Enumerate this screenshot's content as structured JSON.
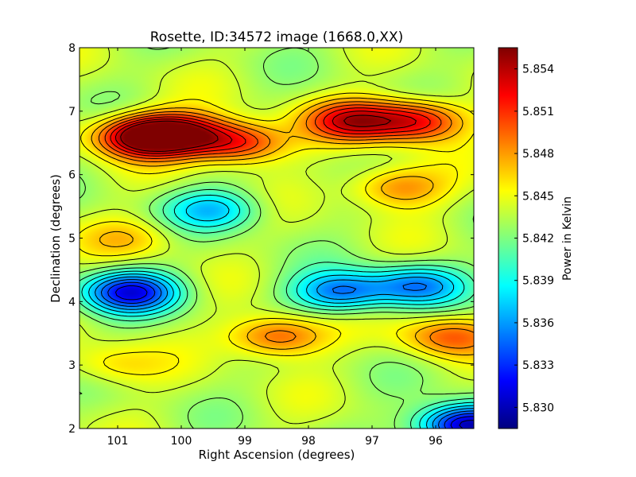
{
  "chart_data": {
    "type": "heatmap",
    "title": "Rosette, ID:34572 image (1668.0,XX)",
    "xlabel": "Right Ascension (degrees)",
    "ylabel": "Declination (degrees)",
    "colorbar_label": "Power in Kelvin",
    "x_reversed": true,
    "xlim": [
      101.6,
      95.4
    ],
    "ylim": [
      2,
      8
    ],
    "x_ticks": [
      {
        "value": 101,
        "label": "101"
      },
      {
        "value": 100,
        "label": "100"
      },
      {
        "value": 99,
        "label": "99"
      },
      {
        "value": 98,
        "label": "98"
      },
      {
        "value": 97,
        "label": "97"
      },
      {
        "value": 96,
        "label": "96"
      }
    ],
    "y_ticks": [
      {
        "value": 2,
        "label": "2"
      },
      {
        "value": 3,
        "label": "3"
      },
      {
        "value": 4,
        "label": "4"
      },
      {
        "value": 5,
        "label": "5"
      },
      {
        "value": 6,
        "label": "6"
      },
      {
        "value": 7,
        "label": "7"
      },
      {
        "value": 8,
        "label": "8"
      }
    ],
    "colorbar_range": [
      5.8285,
      5.8555
    ],
    "colorbar_ticks": [
      {
        "value": 5.83,
        "label": "5.830"
      },
      {
        "value": 5.833,
        "label": "5.833"
      },
      {
        "value": 5.836,
        "label": "5.836"
      },
      {
        "value": 5.839,
        "label": "5.839"
      },
      {
        "value": 5.842,
        "label": "5.842"
      },
      {
        "value": 5.845,
        "label": "5.845"
      },
      {
        "value": 5.848,
        "label": "5.848"
      },
      {
        "value": 5.851,
        "label": "5.851"
      },
      {
        "value": 5.854,
        "label": "5.854"
      }
    ],
    "colormap": "jet",
    "colormap_stops": [
      "#00007f",
      "#0000ff",
      "#007fff",
      "#00ffff",
      "#7fff7f",
      "#ffff00",
      "#ff7f00",
      "#ff0000",
      "#7f0000"
    ],
    "contour_color": "#000000",
    "grid": false,
    "features": [
      {
        "ra": 100.6,
        "dec": 6.6,
        "value": 5.8555
      },
      {
        "ra": 100.0,
        "dec": 6.65,
        "value": 5.852
      },
      {
        "ra": 99.1,
        "dec": 6.5,
        "value": 5.852
      },
      {
        "ra": 97.3,
        "dec": 6.85,
        "value": 5.8525
      },
      {
        "ra": 96.3,
        "dec": 6.85,
        "value": 5.8525
      },
      {
        "ra": 96.6,
        "dec": 5.8,
        "value": 5.849
      },
      {
        "ra": 99.5,
        "dec": 5.45,
        "value": 5.8375
      },
      {
        "ra": 100.8,
        "dec": 5.0,
        "value": 5.8465
      },
      {
        "ra": 100.8,
        "dec": 4.15,
        "value": 5.832
      },
      {
        "ra": 97.5,
        "dec": 4.15,
        "value": 5.835
      },
      {
        "ra": 96.3,
        "dec": 4.25,
        "value": 5.836
      },
      {
        "ra": 98.5,
        "dec": 3.45,
        "value": 5.8505
      },
      {
        "ra": 95.8,
        "dec": 3.45,
        "value": 5.8495
      },
      {
        "ra": 101.1,
        "dec": 3.0,
        "value": 5.8465
      },
      {
        "ra": 95.5,
        "dec": 2.05,
        "value": 5.829
      }
    ]
  }
}
